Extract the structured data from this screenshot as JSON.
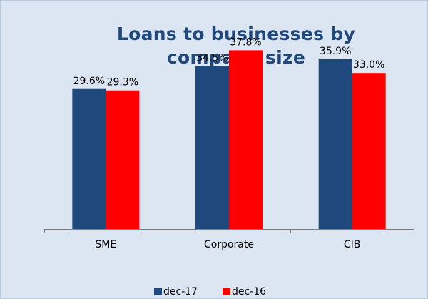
{
  "chart_data": {
    "type": "bar",
    "title": "Loans to businesses by company size",
    "categories": [
      "SME",
      "Corporate",
      "CIB"
    ],
    "series": [
      {
        "name": "dec-17",
        "values": [
          29.6,
          34.5,
          35.9
        ],
        "labels": [
          "29.6%",
          "34.5%",
          "35.9%"
        ],
        "color": "#1f497d"
      },
      {
        "name": "dec-16",
        "values": [
          29.3,
          37.8,
          33.0
        ],
        "labels": [
          "29.3%",
          "37.8%",
          "33.0%"
        ],
        "color": "#ff0000"
      }
    ],
    "ylim": [
      0,
      40
    ],
    "grid": false,
    "legend_position": "bottom"
  }
}
